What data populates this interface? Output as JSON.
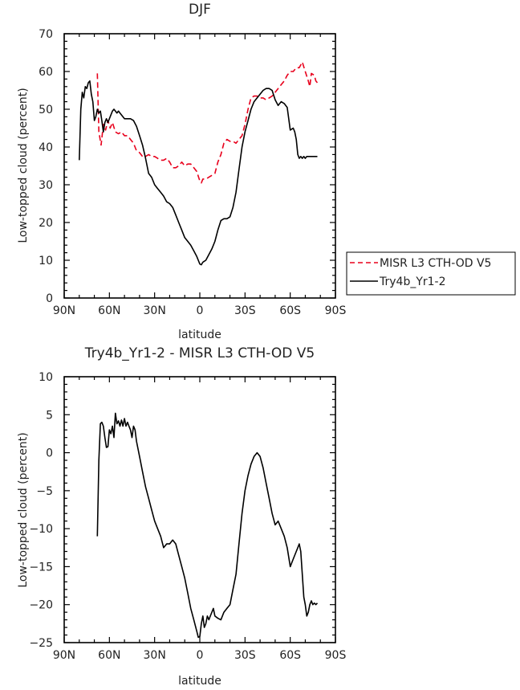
{
  "chart_data": [
    {
      "type": "line",
      "title": "DJF",
      "xlabel": "latitude",
      "ylabel": "Low-topped cloud (percent)",
      "xlim": [
        90,
        -90
      ],
      "ylim": [
        0,
        70
      ],
      "x_ticks": [
        90,
        60,
        30,
        0,
        -30,
        -60,
        -90
      ],
      "x_tick_labels": [
        "90N",
        "60N",
        "30N",
        "0",
        "30S",
        "60S",
        "90S"
      ],
      "y_ticks": [
        0,
        10,
        20,
        30,
        40,
        50,
        60,
        70
      ],
      "legend_position": "right-outside",
      "series": [
        {
          "name": "MISR L3 CTH-OD V5",
          "color": "#e8001c",
          "dash": "dashed",
          "x": [
            68,
            67,
            65.5,
            64,
            62.5,
            61,
            59.5,
            58,
            56,
            54,
            52,
            50,
            48,
            46,
            44,
            42,
            40,
            38,
            36,
            34,
            32,
            30,
            28,
            26,
            24,
            22,
            20,
            18,
            16,
            14,
            12,
            10,
            8,
            6,
            4,
            2,
            0,
            -1,
            -2,
            -4,
            -6,
            -8,
            -10,
            -12,
            -14,
            -16,
            -18,
            -20,
            -22,
            -24,
            -26,
            -28,
            -30,
            -32,
            -34,
            -36,
            -38,
            -40,
            -42,
            -44,
            -46,
            -48,
            -50,
            -52,
            -54,
            -56,
            -58,
            -60,
            -62,
            -64,
            -66,
            -68,
            -70,
            -72,
            -73,
            -74,
            -76,
            -77,
            -78
          ],
          "values": [
            59.5,
            44,
            40.5,
            46,
            44.5,
            47,
            45,
            46.5,
            44,
            43.5,
            44,
            43,
            43,
            42,
            41,
            39,
            38.5,
            37.5,
            37.5,
            38,
            37.5,
            37.5,
            37,
            36.5,
            36.5,
            37,
            36,
            34.5,
            34.5,
            35,
            36,
            35,
            35.5,
            35.5,
            34.5,
            33.5,
            31,
            30.5,
            31.5,
            31.5,
            32,
            32.5,
            33,
            36,
            38,
            41,
            42,
            41.5,
            41.5,
            41,
            42,
            43,
            46,
            50,
            53,
            53.5,
            53.5,
            53,
            53,
            52.5,
            53,
            53.5,
            54.5,
            55.5,
            56.5,
            57.5,
            59,
            60,
            60,
            61,
            61,
            62.5,
            60,
            57.5,
            56,
            59.5,
            59,
            57.5,
            57
          ]
        },
        {
          "name": "Try4b_Yr1-2",
          "color": "#000000",
          "dash": "solid",
          "x": [
            80,
            79,
            78,
            77,
            76,
            75,
            74,
            73,
            72,
            71,
            70,
            69,
            68,
            67,
            66,
            65,
            64,
            63,
            62,
            61,
            60,
            59,
            58,
            57,
            56,
            55,
            54,
            53,
            52,
            51,
            50,
            48,
            46,
            44,
            42,
            40,
            38,
            36,
            34,
            32,
            30,
            28,
            26,
            24,
            22,
            20,
            18,
            16,
            14,
            12,
            10,
            8,
            6,
            4,
            2,
            1,
            0,
            -1,
            -2,
            -4,
            -6,
            -8,
            -10,
            -12,
            -14,
            -16,
            -18,
            -20,
            -22,
            -24,
            -26,
            -28,
            -30,
            -32,
            -34,
            -36,
            -38,
            -40,
            -42,
            -44,
            -46,
            -48,
            -50,
            -52,
            -54,
            -56,
            -58,
            -60,
            -62,
            -63,
            -64,
            -65,
            -66,
            -67,
            -68,
            -69,
            -70,
            -71,
            -72,
            -73,
            -74,
            -75,
            -76,
            -77,
            -78
          ],
          "values": [
            36.5,
            50,
            54.5,
            53,
            56,
            55.5,
            57,
            57.5,
            54,
            52,
            47,
            48,
            50,
            49,
            49.5,
            47,
            44,
            46.5,
            47.5,
            46.5,
            47.5,
            48.5,
            49.5,
            50,
            49.5,
            49,
            49.5,
            49,
            48.5,
            48,
            47.5,
            47.5,
            47.5,
            47,
            45.5,
            43,
            40.5,
            37,
            33,
            32,
            30,
            29,
            28,
            27,
            25.5,
            25,
            24,
            22,
            20,
            18,
            16,
            15,
            14,
            12.5,
            11,
            10,
            9,
            8.8,
            9.5,
            10,
            11.5,
            13,
            15,
            18,
            20.5,
            21,
            21,
            21.5,
            24,
            28,
            34,
            40,
            44,
            47,
            50,
            52,
            53,
            54,
            55,
            55.5,
            55.5,
            55,
            52.5,
            51,
            52,
            51.5,
            50.5,
            44.5,
            45,
            44,
            42,
            38,
            37,
            37.5,
            37,
            37.5,
            37,
            37.5,
            37.5,
            37.5,
            37.5,
            37.5,
            37.5,
            37.5,
            37.5
          ]
        }
      ]
    },
    {
      "type": "line",
      "title": "Try4b_Yr1-2 - MISR L3 CTH-OD V5",
      "xlabel": "latitude",
      "ylabel": "Low-topped cloud (percent)",
      "xlim": [
        90,
        -90
      ],
      "ylim": [
        -25,
        10
      ],
      "x_ticks": [
        90,
        60,
        30,
        0,
        -30,
        -60,
        -90
      ],
      "x_tick_labels": [
        "90N",
        "60N",
        "30N",
        "0",
        "30S",
        "60S",
        "90S"
      ],
      "y_ticks": [
        -25,
        -20,
        -15,
        -10,
        -5,
        0,
        5,
        10
      ],
      "series": [
        {
          "color": "#000000",
          "dash": "solid",
          "x": [
            68,
            67,
            66,
            65,
            64,
            63,
            62,
            61,
            60,
            59,
            58,
            57,
            56,
            55,
            54,
            53,
            52,
            51,
            50,
            49,
            48,
            47,
            46,
            45,
            44,
            43,
            42,
            40,
            38,
            36,
            34,
            32,
            30,
            28,
            26,
            24,
            22,
            20,
            18,
            16,
            14,
            12,
            10,
            8,
            6,
            4,
            2,
            1,
            0,
            -1,
            -2,
            -3,
            -4,
            -5,
            -6,
            -7,
            -8,
            -9,
            -10,
            -12,
            -14,
            -16,
            -18,
            -20,
            -22,
            -24,
            -26,
            -28,
            -30,
            -32,
            -34,
            -36,
            -38,
            -40,
            -42,
            -44,
            -46,
            -48,
            -50,
            -52,
            -54,
            -56,
            -58,
            -60,
            -62,
            -64,
            -65,
            -66,
            -67,
            -68,
            -69,
            -70,
            -71,
            -72,
            -73,
            -74,
            -75,
            -76,
            -77,
            -78
          ],
          "values": [
            -11,
            -1,
            3.8,
            4,
            3.5,
            2,
            0.7,
            0.8,
            3,
            2.5,
            3.5,
            2,
            5.2,
            3.8,
            4.2,
            3.5,
            4.3,
            3.5,
            4.5,
            3.5,
            4,
            3.5,
            3,
            2,
            3.5,
            3,
            1.5,
            -0.5,
            -2.5,
            -4.5,
            -6,
            -7.5,
            -9,
            -10,
            -11,
            -12.5,
            -12,
            -12,
            -11.5,
            -12,
            -13.5,
            -15,
            -16.5,
            -18.5,
            -20.5,
            -22,
            -23.5,
            -24.3,
            -24.2,
            -22.5,
            -21.5,
            -23,
            -22.5,
            -21.5,
            -22,
            -21.5,
            -21,
            -20.5,
            -21.5,
            -21.8,
            -22,
            -21,
            -20.5,
            -20,
            -18,
            -16,
            -12,
            -8,
            -5,
            -3,
            -1.5,
            -0.5,
            0,
            -0.5,
            -2,
            -4,
            -6,
            -8,
            -9.5,
            -9,
            -10,
            -11,
            -12.5,
            -15,
            -14,
            -13,
            -12.5,
            -12,
            -13,
            -16,
            -19,
            -20,
            -21.5,
            -21,
            -20,
            -19.5,
            -20,
            -19.8,
            -20,
            -19.8
          ]
        }
      ]
    }
  ]
}
